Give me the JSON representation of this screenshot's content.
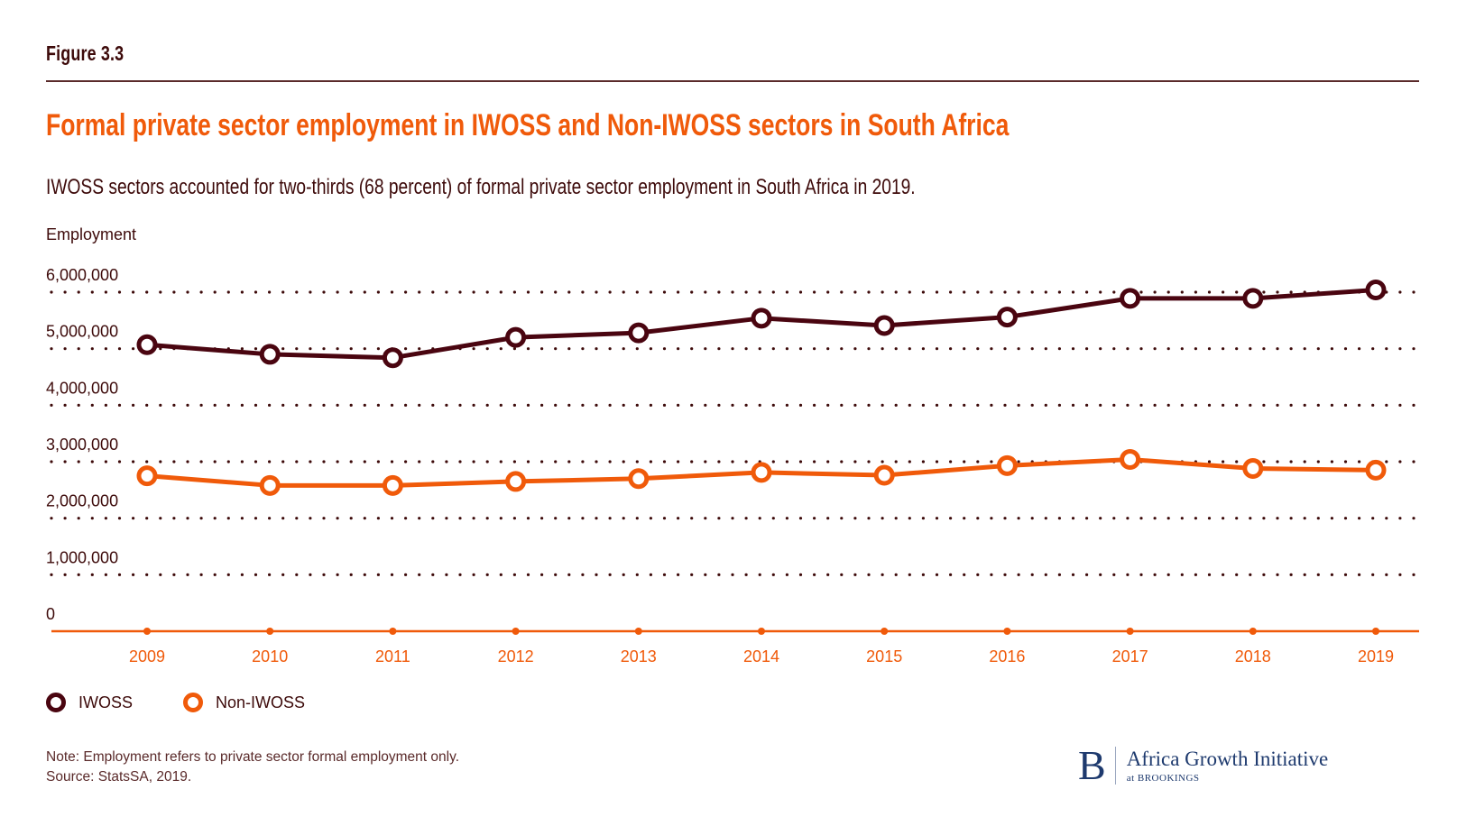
{
  "header": {
    "figure_label": "Figure 3.3",
    "title": "Formal private sector employment in IWOSS and Non-IWOSS sectors in South Africa",
    "subtitle": "IWOSS sectors accounted for two-thirds (68 percent) of formal private sector employment in South Africa in 2019."
  },
  "colors": {
    "iwoss": "#4a0510",
    "non_iwoss": "#f05a0a",
    "title": "#f05a0a",
    "grid": "#3d0a0a",
    "brand": "#1e3a6e"
  },
  "chart_data": {
    "type": "line",
    "title": "Formal private sector employment in IWOSS and Non-IWOSS sectors in South Africa",
    "xlabel": "",
    "ylabel": "Employment",
    "x": [
      "2009",
      "2010",
      "2011",
      "2012",
      "2013",
      "2014",
      "2015",
      "2016",
      "2017",
      "2018",
      "2019"
    ],
    "ylim": [
      0,
      6000000
    ],
    "yticks": [
      0,
      1000000,
      2000000,
      3000000,
      4000000,
      5000000,
      6000000
    ],
    "ytick_labels": [
      "0",
      "1,000,000",
      "2,000,000",
      "3,000,000",
      "4,000,000",
      "5,000,000",
      "6,000,000"
    ],
    "grid": true,
    "legend_position": "bottom-left",
    "series": [
      {
        "name": "IWOSS",
        "color": "#4a0510",
        "values": [
          5070000,
          4900000,
          4840000,
          5200000,
          5280000,
          5540000,
          5410000,
          5560000,
          5890000,
          5890000,
          6040000
        ]
      },
      {
        "name": "Non-IWOSS",
        "color": "#f05a0a",
        "values": [
          2750000,
          2580000,
          2580000,
          2650000,
          2700000,
          2810000,
          2760000,
          2930000,
          3040000,
          2880000,
          2850000
        ]
      }
    ]
  },
  "legend": {
    "items": [
      {
        "label": "IWOSS",
        "color": "#4a0510"
      },
      {
        "label": "Non-IWOSS",
        "color": "#f05a0a"
      }
    ]
  },
  "footer": {
    "note": "Note: Employment refers to private sector formal employment only.",
    "source": "Source: StatsSA, 2019.",
    "logo_letter": "B",
    "logo_name": "Africa Growth Initiative",
    "logo_sub": "at BROOKINGS"
  }
}
